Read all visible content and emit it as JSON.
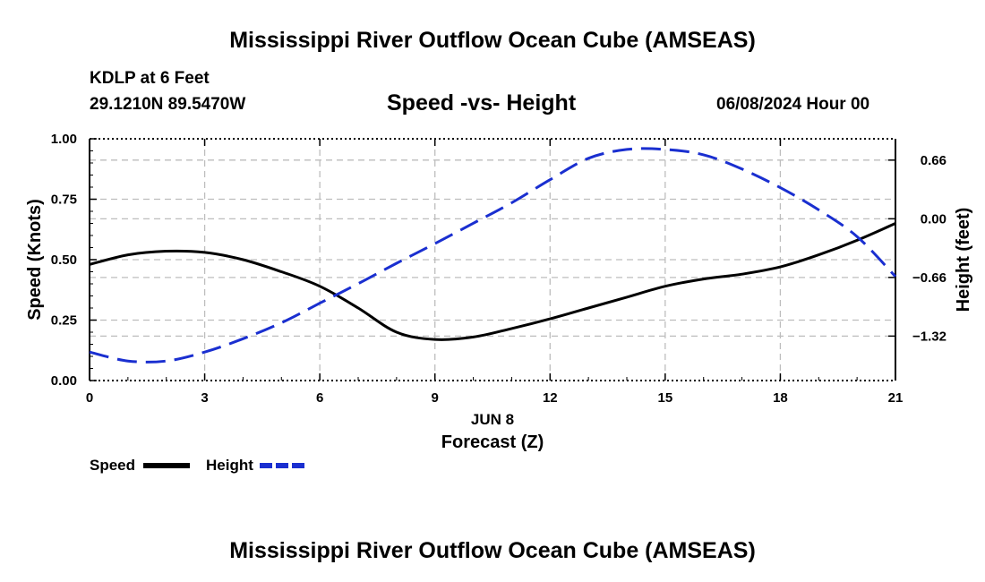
{
  "header": {
    "title": "Mississippi River Outflow Ocean Cube (AMSEAS)",
    "station": "KDLP at 6 Feet",
    "coords": "29.1210N  89.5470W",
    "subtitle": "Speed -vs- Height",
    "datetime": "06/08/2024 Hour 00"
  },
  "footer": {
    "title": "Mississippi River Outflow Ocean Cube (AMSEAS)"
  },
  "legend": {
    "speed_label": "Speed",
    "height_label": "Height"
  },
  "colors": {
    "speed": "#000000",
    "height": "#1a2fd0",
    "grid": "#bdbdbd"
  },
  "chart_data": {
    "type": "line",
    "title": "Speed -vs- Height",
    "xlabel": "Forecast (Z)",
    "xlabel_date": "JUN 8",
    "ylabel": "Speed (Knots)",
    "y2label": "Height (feet)",
    "xlim": [
      0,
      21
    ],
    "ylim": [
      0,
      1
    ],
    "y2lim": [
      -1.82,
      0.9
    ],
    "x_ticks": [
      "0",
      "3",
      "6",
      "9",
      "12",
      "15",
      "18",
      "21"
    ],
    "y_ticks": [
      "0.00",
      "0.25",
      "0.50",
      "0.75",
      "1.00"
    ],
    "y2_ticks": [
      "0.66",
      "0.00",
      "−0.66",
      "−1.32"
    ],
    "y2_tick_values": [
      0.66,
      0,
      -0.66,
      -1.32
    ],
    "grid": true,
    "legend_position": "bottom-left",
    "series": [
      {
        "name": "Speed",
        "axis": "left",
        "style": "solid",
        "x": [
          0,
          1,
          2,
          3,
          4,
          5,
          6,
          7,
          8,
          9,
          10,
          11,
          12,
          13,
          14,
          15,
          16,
          17,
          18,
          19,
          20,
          21
        ],
        "values": [
          0.48,
          0.52,
          0.535,
          0.53,
          0.5,
          0.45,
          0.39,
          0.3,
          0.2,
          0.17,
          0.18,
          0.215,
          0.255,
          0.3,
          0.345,
          0.39,
          0.42,
          0.44,
          0.47,
          0.52,
          0.58,
          0.65
        ]
      },
      {
        "name": "Height",
        "axis": "right",
        "style": "dashed",
        "x": [
          0,
          1,
          2,
          3,
          4,
          5,
          6,
          7,
          8,
          9,
          10,
          11,
          12,
          13,
          14,
          15,
          16,
          17,
          18,
          19,
          20,
          21
        ],
        "values": [
          -1.5,
          -1.6,
          -1.6,
          -1.5,
          -1.35,
          -1.17,
          -0.95,
          -0.73,
          -0.5,
          -0.28,
          -0.05,
          0.18,
          0.44,
          0.68,
          0.78,
          0.78,
          0.72,
          0.56,
          0.35,
          0.1,
          -0.2,
          -0.65
        ]
      }
    ]
  }
}
